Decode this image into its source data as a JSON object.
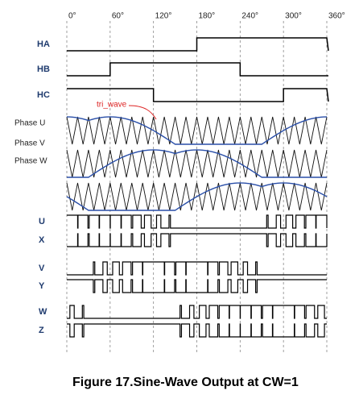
{
  "angles": [
    "0°",
    "60°",
    "120°",
    "180°",
    "240°",
    "300°",
    "360°"
  ],
  "hall_labels": [
    "HA",
    "HB",
    "HC"
  ],
  "phase_labels": [
    "Phase U",
    "Phase V",
    "Phase W"
  ],
  "gate_labels": [
    "U",
    "X",
    "V",
    "Y",
    "W",
    "Z"
  ],
  "annotation": "tri_wave",
  "caption": "Figure 17.Sine-Wave Output at CW=1"
}
